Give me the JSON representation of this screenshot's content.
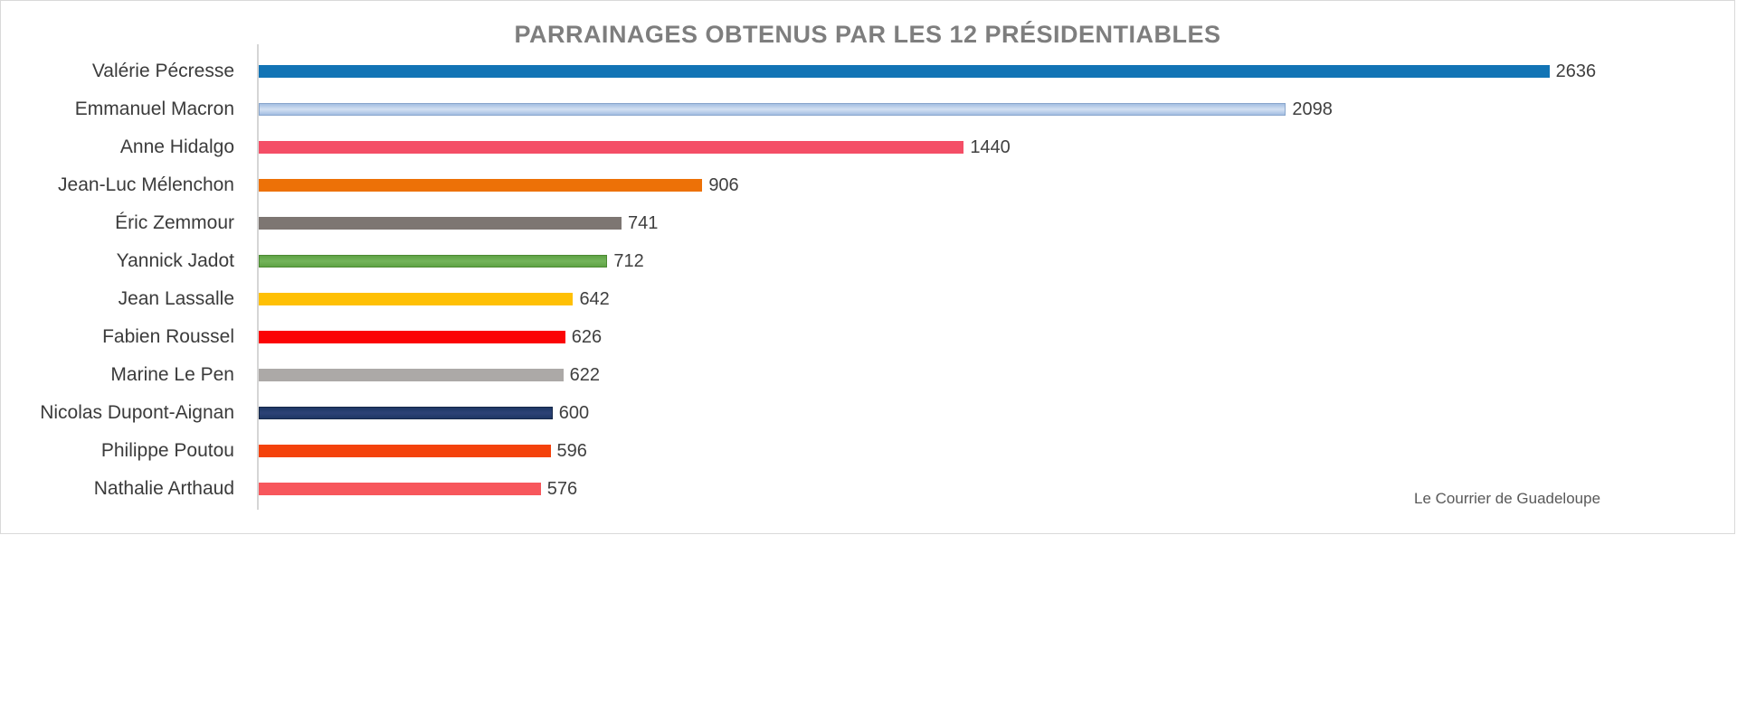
{
  "chart_data": {
    "type": "bar",
    "orientation": "horizontal",
    "title": "PARRAINAGES OBTENUS PAR LES 12 PRÉSIDENTIABLES",
    "source_credit": "Le Courrier de Guadeloupe",
    "xlabel": "",
    "ylabel": "",
    "xlim": [
      0,
      3010
    ],
    "grid": false,
    "legend": false,
    "data_labels": true,
    "background_color": "#ffffff",
    "title_color": "#7e7e7e",
    "categories": [
      "Valérie Pécresse",
      "Emmanuel Macron",
      "Anne Hidalgo",
      "Jean-Luc Mélenchon",
      "Éric Zemmour",
      "Yannick Jadot",
      "Jean Lassalle",
      "Fabien Roussel",
      "Marine Le Pen",
      "Nicolas Dupont-Aignan",
      "Philippe Poutou",
      "Nathalie Arthaud"
    ],
    "values": [
      2636,
      2098,
      1440,
      906,
      741,
      712,
      642,
      626,
      622,
      600,
      596,
      576
    ],
    "bars": [
      {
        "label": "Valérie Pécresse",
        "value": 2636,
        "fill": "#1274b5"
      },
      {
        "label": "Emmanuel Macron",
        "value": 2098,
        "fill": "#a3bee2",
        "fill_mid": "#d3e0f2",
        "border": "#89a6cc"
      },
      {
        "label": "Anne Hidalgo",
        "value": 1440,
        "fill": "#f44e66"
      },
      {
        "label": "Jean-Luc Mélenchon",
        "value": 906,
        "fill": "#ed7107"
      },
      {
        "label": "Éric Zemmour",
        "value": 741,
        "fill": "#7d7672"
      },
      {
        "label": "Yannick Jadot",
        "value": 712,
        "fill": "#5ea344",
        "fill_mid": "#74b45b",
        "border": "#4c8a33"
      },
      {
        "label": "Jean Lassalle",
        "value": 642,
        "fill": "#ffc004"
      },
      {
        "label": "Fabien Roussel",
        "value": 626,
        "fill": "#fb0405"
      },
      {
        "label": "Marine Le Pen",
        "value": 622,
        "fill": "#aca9a7"
      },
      {
        "label": "Nicolas Dupont-Aignan",
        "value": 600,
        "fill": "#1f3765",
        "fill_mid": "#2c4276",
        "border": "#152849"
      },
      {
        "label": "Philippe Poutou",
        "value": 596,
        "fill": "#f4420b"
      },
      {
        "label": "Nathalie Arthaud",
        "value": 576,
        "fill": "#f7575c"
      }
    ]
  }
}
